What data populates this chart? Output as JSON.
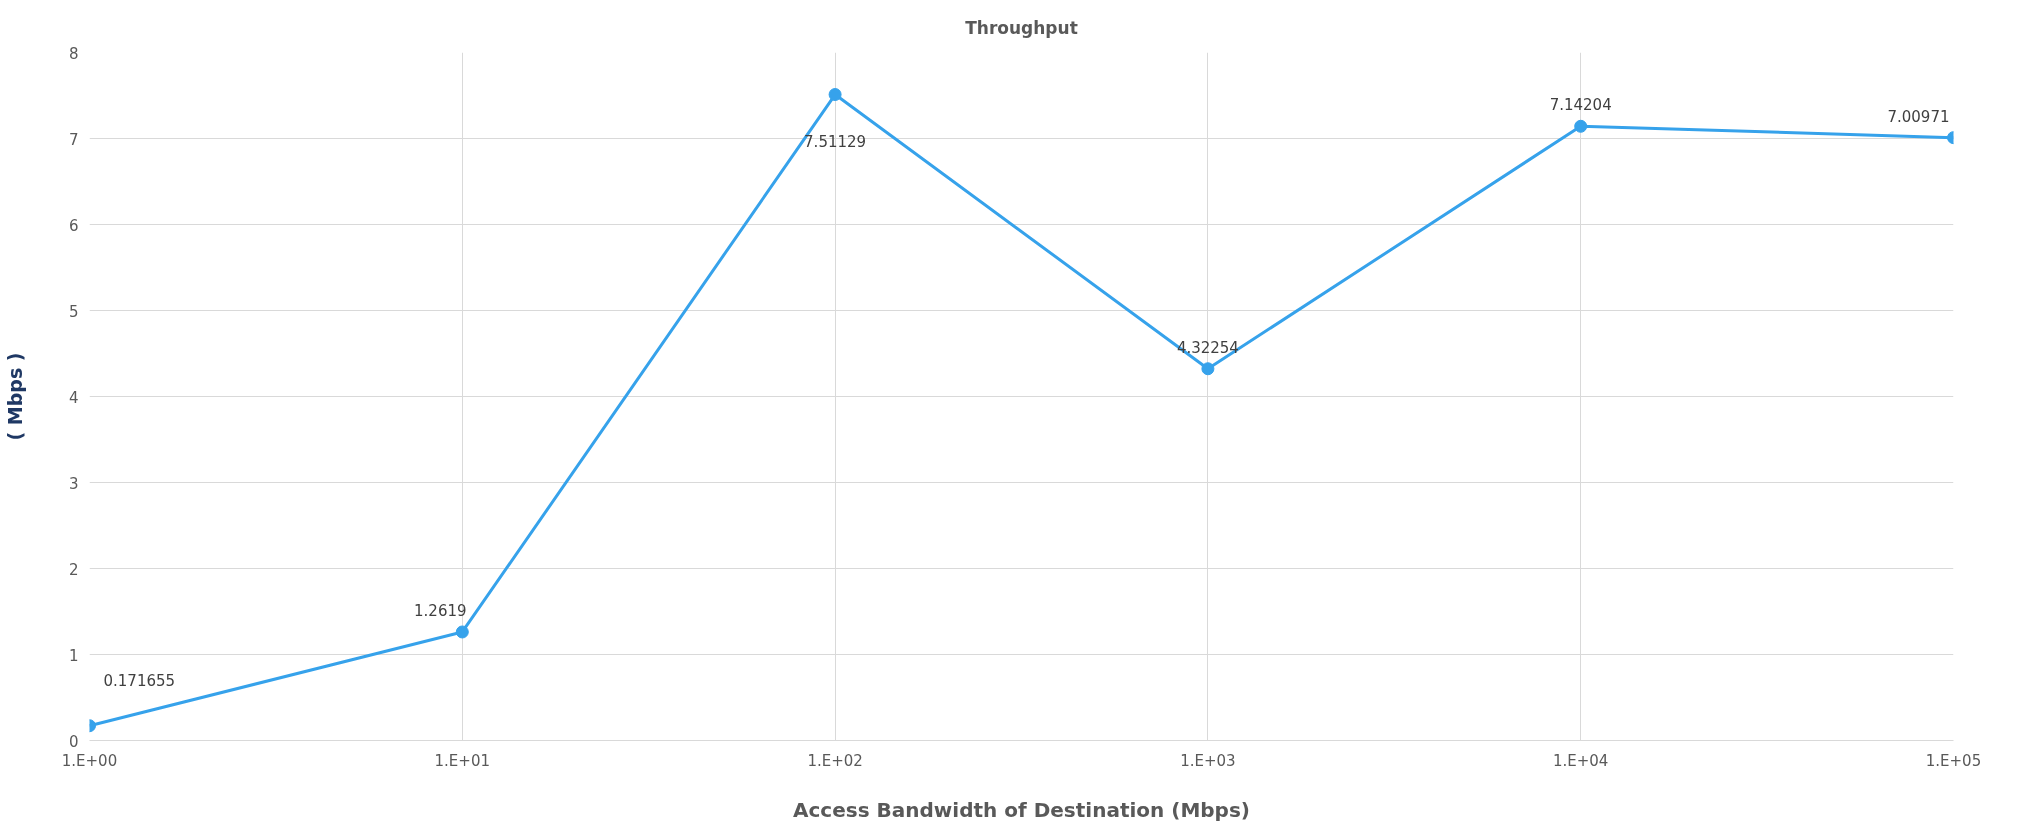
{
  "chart_data": {
    "type": "line",
    "title": "Throughput",
    "xlabel": "Access Bandwidth of Destination (Mbps)",
    "ylabel": "( Mbps )",
    "categories": [
      "1.E+00",
      "1.E+01",
      "1.E+02",
      "1.E+03",
      "1.E+04",
      "1.E+05"
    ],
    "series": [
      {
        "color": "#36a2eb",
        "values": [
          0.171655,
          1.2619,
          7.51129,
          4.32254,
          7.14204,
          7.00971
        ]
      }
    ],
    "ylim": [
      0,
      8
    ],
    "yticks": [
      0,
      1,
      2,
      3,
      4,
      5,
      6,
      7,
      8
    ],
    "grid": true,
    "marker": "circle",
    "line_style": "solid",
    "data_labels": true
  }
}
